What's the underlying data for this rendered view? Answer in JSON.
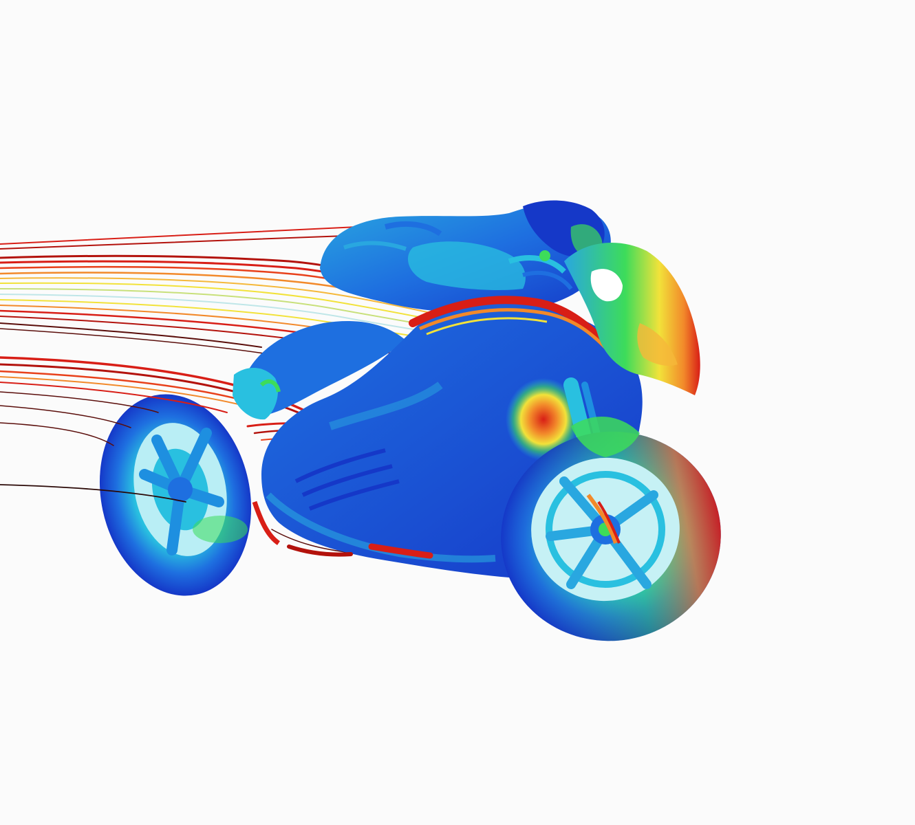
{
  "scene": {
    "background": "#fbfbfb",
    "colors": {
      "deep_blue": "#1538c8",
      "blue": "#1e6fe0",
      "cyan": "#29c0e0",
      "green": "#3ddc5a",
      "yellow": "#f2e23a",
      "orange": "#f2892a",
      "red": "#d81e16",
      "dark_red": "#5a0d0a"
    },
    "streamline_palette": [
      "#5a0d0a",
      "#b3120c",
      "#d81e16",
      "#e8401a",
      "#f2892a",
      "#f5b83a",
      "#f2e23a",
      "#c8e07a",
      "#bfe6e8"
    ]
  }
}
